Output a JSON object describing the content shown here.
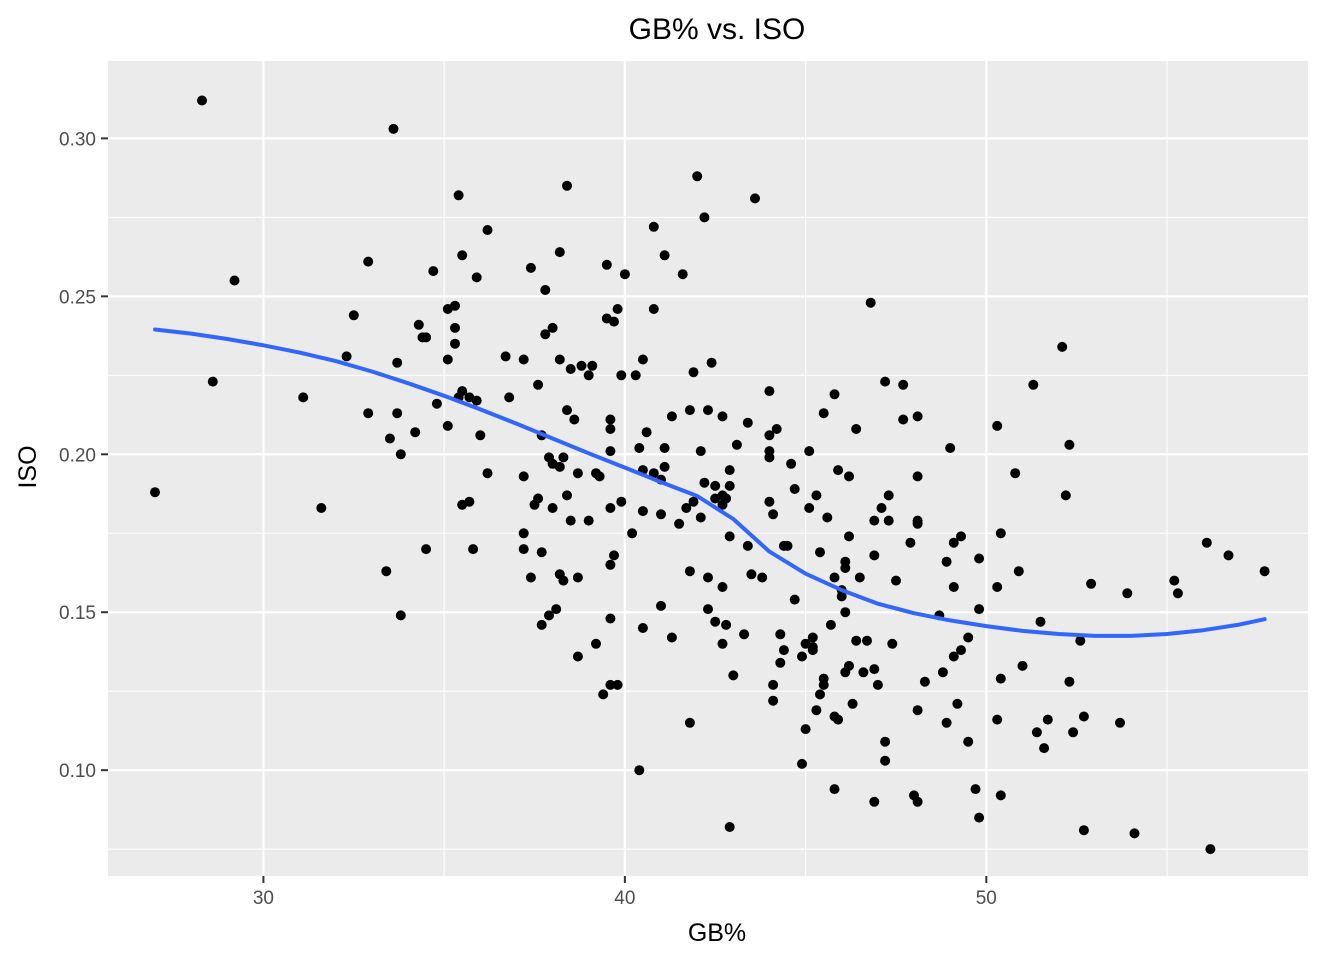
{
  "chart_data": {
    "type": "scatter",
    "title": "GB% vs. ISO",
    "xlabel": "GB%",
    "ylabel": "ISO",
    "xlim": [
      25.7,
      58.9
    ],
    "ylim": [
      0.0665,
      0.3245
    ],
    "x_ticks": [
      30,
      40,
      50
    ],
    "x_minor_ticks": [
      35,
      45,
      55
    ],
    "y_ticks": [
      0.1,
      0.15,
      0.2,
      0.25,
      0.3
    ],
    "y_minor_ticks": [
      0.075,
      0.125,
      0.175,
      0.225,
      0.275
    ],
    "x_tick_labels": [
      "30",
      "40",
      "50"
    ],
    "y_tick_labels": [
      "0.10",
      "0.15",
      "0.20",
      "0.25",
      "0.30"
    ],
    "grid": true,
    "legend": "none",
    "colors": {
      "panel_background": "#ebebeb",
      "grid": "#ffffff",
      "points": "#000000",
      "smooth_line": "#3366ff"
    },
    "points": [
      [
        27.0,
        0.188
      ],
      [
        28.3,
        0.312
      ],
      [
        28.6,
        0.223
      ],
      [
        29.2,
        0.255
      ],
      [
        31.1,
        0.218
      ],
      [
        31.6,
        0.183
      ],
      [
        32.3,
        0.231
      ],
      [
        32.5,
        0.244
      ],
      [
        32.9,
        0.261
      ],
      [
        32.9,
        0.213
      ],
      [
        33.4,
        0.163
      ],
      [
        33.5,
        0.205
      ],
      [
        33.6,
        0.303
      ],
      [
        33.7,
        0.229
      ],
      [
        33.7,
        0.213
      ],
      [
        33.8,
        0.2
      ],
      [
        33.8,
        0.149
      ],
      [
        34.2,
        0.207
      ],
      [
        34.3,
        0.241
      ],
      [
        34.4,
        0.237
      ],
      [
        34.5,
        0.237
      ],
      [
        34.5,
        0.17
      ],
      [
        34.7,
        0.258
      ],
      [
        34.8,
        0.216
      ],
      [
        35.1,
        0.246
      ],
      [
        35.1,
        0.23
      ],
      [
        35.1,
        0.209
      ],
      [
        35.3,
        0.247
      ],
      [
        35.3,
        0.24
      ],
      [
        35.3,
        0.235
      ],
      [
        35.4,
        0.218
      ],
      [
        35.4,
        0.282
      ],
      [
        35.5,
        0.263
      ],
      [
        35.5,
        0.22
      ],
      [
        35.5,
        0.184
      ],
      [
        35.7,
        0.218
      ],
      [
        35.7,
        0.185
      ],
      [
        35.8,
        0.17
      ],
      [
        35.9,
        0.217
      ],
      [
        35.9,
        0.256
      ],
      [
        36.0,
        0.206
      ],
      [
        36.2,
        0.271
      ],
      [
        36.2,
        0.194
      ],
      [
        36.7,
        0.231
      ],
      [
        36.8,
        0.218
      ],
      [
        37.2,
        0.23
      ],
      [
        37.2,
        0.193
      ],
      [
        37.2,
        0.175
      ],
      [
        37.2,
        0.17
      ],
      [
        37.4,
        0.259
      ],
      [
        37.4,
        0.161
      ],
      [
        37.5,
        0.184
      ],
      [
        37.6,
        0.186
      ],
      [
        37.6,
        0.222
      ],
      [
        37.7,
        0.206
      ],
      [
        37.7,
        0.169
      ],
      [
        37.7,
        0.146
      ],
      [
        37.8,
        0.252
      ],
      [
        37.8,
        0.238
      ],
      [
        37.9,
        0.199
      ],
      [
        37.9,
        0.149
      ],
      [
        38.0,
        0.24
      ],
      [
        38.0,
        0.197
      ],
      [
        38.0,
        0.183
      ],
      [
        38.1,
        0.151
      ],
      [
        38.2,
        0.264
      ],
      [
        38.2,
        0.23
      ],
      [
        38.2,
        0.196
      ],
      [
        38.2,
        0.162
      ],
      [
        38.3,
        0.199
      ],
      [
        38.3,
        0.16
      ],
      [
        38.4,
        0.285
      ],
      [
        38.4,
        0.214
      ],
      [
        38.4,
        0.187
      ],
      [
        38.5,
        0.227
      ],
      [
        38.5,
        0.179
      ],
      [
        38.6,
        0.211
      ],
      [
        38.7,
        0.194
      ],
      [
        38.7,
        0.161
      ],
      [
        38.7,
        0.136
      ],
      [
        38.8,
        0.228
      ],
      [
        39.0,
        0.225
      ],
      [
        39.0,
        0.179
      ],
      [
        39.1,
        0.228
      ],
      [
        39.2,
        0.194
      ],
      [
        39.2,
        0.14
      ],
      [
        39.3,
        0.193
      ],
      [
        39.4,
        0.124
      ],
      [
        39.5,
        0.26
      ],
      [
        39.5,
        0.243
      ],
      [
        39.6,
        0.211
      ],
      [
        39.6,
        0.208
      ],
      [
        39.6,
        0.201
      ],
      [
        39.6,
        0.183
      ],
      [
        39.6,
        0.165
      ],
      [
        39.6,
        0.148
      ],
      [
        39.6,
        0.127
      ],
      [
        39.7,
        0.242
      ],
      [
        39.7,
        0.168
      ],
      [
        39.8,
        0.246
      ],
      [
        39.8,
        0.127
      ],
      [
        39.9,
        0.225
      ],
      [
        39.9,
        0.185
      ],
      [
        40.0,
        0.257
      ],
      [
        40.2,
        0.175
      ],
      [
        40.3,
        0.225
      ],
      [
        40.4,
        0.202
      ],
      [
        40.4,
        0.1
      ],
      [
        40.5,
        0.23
      ],
      [
        40.5,
        0.195
      ],
      [
        40.5,
        0.182
      ],
      [
        40.5,
        0.145
      ],
      [
        40.6,
        0.207
      ],
      [
        40.8,
        0.272
      ],
      [
        40.8,
        0.246
      ],
      [
        40.8,
        0.194
      ],
      [
        41.0,
        0.181
      ],
      [
        41.0,
        0.192
      ],
      [
        41.0,
        0.152
      ],
      [
        41.1,
        0.263
      ],
      [
        41.1,
        0.202
      ],
      [
        41.1,
        0.196
      ],
      [
        41.3,
        0.212
      ],
      [
        41.3,
        0.142
      ],
      [
        41.5,
        0.178
      ],
      [
        41.6,
        0.257
      ],
      [
        41.7,
        0.183
      ],
      [
        41.8,
        0.214
      ],
      [
        41.8,
        0.163
      ],
      [
        41.8,
        0.115
      ],
      [
        41.9,
        0.185
      ],
      [
        41.9,
        0.226
      ],
      [
        42.0,
        0.288
      ],
      [
        42.1,
        0.201
      ],
      [
        42.1,
        0.18
      ],
      [
        42.2,
        0.275
      ],
      [
        42.2,
        0.191
      ],
      [
        42.3,
        0.214
      ],
      [
        42.3,
        0.161
      ],
      [
        42.3,
        0.151
      ],
      [
        42.4,
        0.229
      ],
      [
        42.5,
        0.19
      ],
      [
        42.5,
        0.186
      ],
      [
        42.5,
        0.147
      ],
      [
        42.7,
        0.212
      ],
      [
        42.7,
        0.187
      ],
      [
        42.7,
        0.184
      ],
      [
        42.7,
        0.158
      ],
      [
        42.7,
        0.14
      ],
      [
        42.8,
        0.186
      ],
      [
        42.8,
        0.146
      ],
      [
        42.9,
        0.195
      ],
      [
        42.9,
        0.19
      ],
      [
        42.9,
        0.174
      ],
      [
        42.9,
        0.082
      ],
      [
        43.0,
        0.13
      ],
      [
        43.1,
        0.203
      ],
      [
        43.3,
        0.143
      ],
      [
        43.4,
        0.21
      ],
      [
        43.4,
        0.171
      ],
      [
        43.5,
        0.162
      ],
      [
        43.6,
        0.281
      ],
      [
        43.8,
        0.161
      ],
      [
        44.0,
        0.22
      ],
      [
        44.0,
        0.206
      ],
      [
        44.0,
        0.199
      ],
      [
        44.0,
        0.185
      ],
      [
        44.0,
        0.201
      ],
      [
        44.1,
        0.181
      ],
      [
        44.1,
        0.127
      ],
      [
        44.1,
        0.122
      ],
      [
        44.2,
        0.208
      ],
      [
        44.3,
        0.143
      ],
      [
        44.3,
        0.134
      ],
      [
        44.4,
        0.171
      ],
      [
        44.4,
        0.138
      ],
      [
        44.5,
        0.171
      ],
      [
        44.6,
        0.197
      ],
      [
        44.7,
        0.189
      ],
      [
        44.7,
        0.154
      ],
      [
        44.9,
        0.136
      ],
      [
        44.9,
        0.102
      ],
      [
        45.0,
        0.14
      ],
      [
        45.0,
        0.113
      ],
      [
        45.1,
        0.183
      ],
      [
        45.1,
        0.201
      ],
      [
        45.2,
        0.142
      ],
      [
        45.2,
        0.139
      ],
      [
        45.2,
        0.138
      ],
      [
        45.3,
        0.187
      ],
      [
        45.3,
        0.119
      ],
      [
        45.4,
        0.169
      ],
      [
        45.4,
        0.124
      ],
      [
        45.5,
        0.213
      ],
      [
        45.5,
        0.129
      ],
      [
        45.5,
        0.127
      ],
      [
        45.6,
        0.18
      ],
      [
        45.7,
        0.146
      ],
      [
        45.8,
        0.219
      ],
      [
        45.8,
        0.161
      ],
      [
        45.8,
        0.117
      ],
      [
        45.8,
        0.094
      ],
      [
        45.9,
        0.195
      ],
      [
        45.9,
        0.116
      ],
      [
        46.0,
        0.157
      ],
      [
        46.0,
        0.155
      ],
      [
        46.1,
        0.166
      ],
      [
        46.1,
        0.164
      ],
      [
        46.1,
        0.15
      ],
      [
        46.1,
        0.131
      ],
      [
        46.2,
        0.193
      ],
      [
        46.2,
        0.174
      ],
      [
        46.2,
        0.133
      ],
      [
        46.3,
        0.121
      ],
      [
        46.4,
        0.208
      ],
      [
        46.4,
        0.141
      ],
      [
        46.5,
        0.161
      ],
      [
        46.6,
        0.131
      ],
      [
        46.7,
        0.141
      ],
      [
        46.8,
        0.248
      ],
      [
        46.9,
        0.179
      ],
      [
        46.9,
        0.168
      ],
      [
        46.9,
        0.132
      ],
      [
        46.9,
        0.09
      ],
      [
        47.0,
        0.127
      ],
      [
        47.1,
        0.183
      ],
      [
        47.2,
        0.223
      ],
      [
        47.2,
        0.109
      ],
      [
        47.2,
        0.103
      ],
      [
        47.3,
        0.187
      ],
      [
        47.3,
        0.179
      ],
      [
        47.4,
        0.14
      ],
      [
        47.5,
        0.16
      ],
      [
        47.7,
        0.222
      ],
      [
        47.7,
        0.211
      ],
      [
        47.9,
        0.172
      ],
      [
        48.0,
        0.092
      ],
      [
        48.1,
        0.212
      ],
      [
        48.1,
        0.193
      ],
      [
        48.1,
        0.179
      ],
      [
        48.1,
        0.178
      ],
      [
        48.1,
        0.119
      ],
      [
        48.1,
        0.09
      ],
      [
        48.3,
        0.128
      ],
      [
        48.7,
        0.149
      ],
      [
        48.8,
        0.131
      ],
      [
        48.9,
        0.166
      ],
      [
        48.9,
        0.115
      ],
      [
        49.0,
        0.202
      ],
      [
        49.1,
        0.172
      ],
      [
        49.1,
        0.158
      ],
      [
        49.1,
        0.136
      ],
      [
        49.2,
        0.121
      ],
      [
        49.3,
        0.174
      ],
      [
        49.3,
        0.138
      ],
      [
        49.5,
        0.142
      ],
      [
        49.5,
        0.109
      ],
      [
        49.7,
        0.094
      ],
      [
        49.8,
        0.167
      ],
      [
        49.8,
        0.151
      ],
      [
        49.8,
        0.085
      ],
      [
        50.3,
        0.209
      ],
      [
        50.3,
        0.158
      ],
      [
        50.3,
        0.116
      ],
      [
        50.4,
        0.175
      ],
      [
        50.4,
        0.129
      ],
      [
        50.4,
        0.092
      ],
      [
        50.8,
        0.194
      ],
      [
        50.9,
        0.163
      ],
      [
        51.0,
        0.133
      ],
      [
        51.3,
        0.222
      ],
      [
        51.4,
        0.112
      ],
      [
        51.5,
        0.147
      ],
      [
        51.6,
        0.107
      ],
      [
        51.7,
        0.116
      ],
      [
        52.1,
        0.234
      ],
      [
        52.2,
        0.187
      ],
      [
        52.3,
        0.203
      ],
      [
        52.3,
        0.128
      ],
      [
        52.4,
        0.112
      ],
      [
        52.6,
        0.141
      ],
      [
        52.7,
        0.117
      ],
      [
        52.7,
        0.081
      ],
      [
        52.9,
        0.159
      ],
      [
        53.7,
        0.115
      ],
      [
        53.9,
        0.156
      ],
      [
        54.1,
        0.08
      ],
      [
        55.2,
        0.16
      ],
      [
        55.3,
        0.156
      ],
      [
        56.1,
        0.172
      ],
      [
        56.2,
        0.075
      ],
      [
        56.7,
        0.168
      ],
      [
        57.7,
        0.163
      ]
    ],
    "smooth_line": [
      [
        27.0,
        0.2395
      ],
      [
        28.0,
        0.2382
      ],
      [
        29.0,
        0.2365
      ],
      [
        30.0,
        0.2345
      ],
      [
        31.0,
        0.2322
      ],
      [
        32.0,
        0.2295
      ],
      [
        33.0,
        0.2262
      ],
      [
        34.0,
        0.2225
      ],
      [
        35.0,
        0.2185
      ],
      [
        36.0,
        0.2142
      ],
      [
        37.0,
        0.2097
      ],
      [
        38.0,
        0.205
      ],
      [
        39.0,
        0.2003
      ],
      [
        40.0,
        0.1958
      ],
      [
        41.0,
        0.1912
      ],
      [
        42.0,
        0.1868
      ],
      [
        43.0,
        0.1795
      ],
      [
        44.0,
        0.1692
      ],
      [
        45.0,
        0.1622
      ],
      [
        46.0,
        0.157
      ],
      [
        47.0,
        0.1527
      ],
      [
        48.0,
        0.1497
      ],
      [
        49.0,
        0.1474
      ],
      [
        50.0,
        0.1456
      ],
      [
        51.0,
        0.1441
      ],
      [
        52.0,
        0.1431
      ],
      [
        53.0,
        0.1425
      ],
      [
        54.0,
        0.1425
      ],
      [
        55.0,
        0.1431
      ],
      [
        56.0,
        0.1443
      ],
      [
        57.0,
        0.1461
      ],
      [
        57.7,
        0.1478
      ]
    ]
  }
}
